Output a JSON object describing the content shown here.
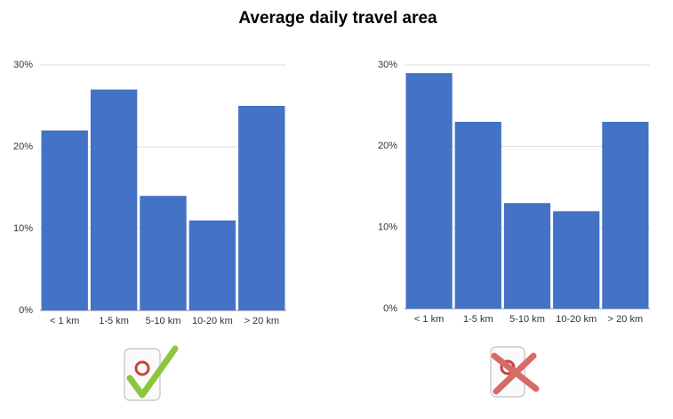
{
  "title": "Average daily travel area",
  "chart_data": [
    {
      "type": "bar",
      "categories": [
        "< 1 km",
        "1-5 km",
        "5-10 km",
        "10-20 km",
        "> 20 km"
      ],
      "values": [
        22,
        27,
        14,
        11,
        25
      ],
      "color": "#4472c4",
      "ylim": [
        0,
        30
      ],
      "yticks": [
        {
          "value": 0,
          "label": "0%"
        },
        {
          "value": 10,
          "label": "10%"
        },
        {
          "value": 20,
          "label": "20%"
        },
        {
          "value": 30,
          "label": "30%"
        }
      ],
      "grid": true
    },
    {
      "type": "bar",
      "categories": [
        "< 1 km",
        "1-5 km",
        "5-10 km",
        "10-20 km",
        "> 20 km"
      ],
      "values": [
        29,
        23,
        13,
        12,
        23
      ],
      "color": "#4472c4",
      "ylim": [
        0,
        30
      ],
      "yticks": [
        {
          "value": 0,
          "label": "0%"
        },
        {
          "value": 10,
          "label": "10%"
        },
        {
          "value": 20,
          "label": "20%"
        },
        {
          "value": 30,
          "label": "30%"
        }
      ],
      "grid": true
    }
  ]
}
